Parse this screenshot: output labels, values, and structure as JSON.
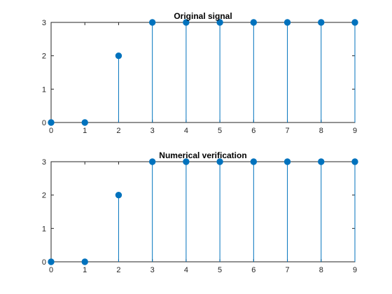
{
  "chart_data": [
    {
      "type": "stem",
      "title": "Original signal",
      "xlabel": "",
      "ylabel": "",
      "x": [
        0,
        1,
        2,
        3,
        4,
        5,
        6,
        7,
        8,
        9
      ],
      "y": [
        0,
        0,
        2,
        3,
        3,
        3,
        3,
        3,
        3,
        3
      ],
      "xlim": [
        0,
        9
      ],
      "ylim": [
        0,
        3
      ],
      "xticks": [
        "0",
        "1",
        "2",
        "3",
        "4",
        "5",
        "6",
        "7",
        "8",
        "9"
      ],
      "yticks": [
        "0",
        "1",
        "2",
        "3"
      ],
      "grid": true,
      "color": "#0072bd"
    },
    {
      "type": "stem",
      "title": "Numerical verification",
      "xlabel": "",
      "ylabel": "",
      "x": [
        0,
        1,
        2,
        3,
        4,
        5,
        6,
        7,
        8,
        9
      ],
      "y": [
        0,
        0,
        2,
        3,
        3,
        3,
        3,
        3,
        3,
        3
      ],
      "xlim": [
        0,
        9
      ],
      "ylim": [
        0,
        3
      ],
      "xticks": [
        "0",
        "1",
        "2",
        "3",
        "4",
        "5",
        "6",
        "7",
        "8",
        "9"
      ],
      "yticks": [
        "0",
        "1",
        "2",
        "3"
      ],
      "grid": true,
      "color": "#0072bd"
    }
  ]
}
